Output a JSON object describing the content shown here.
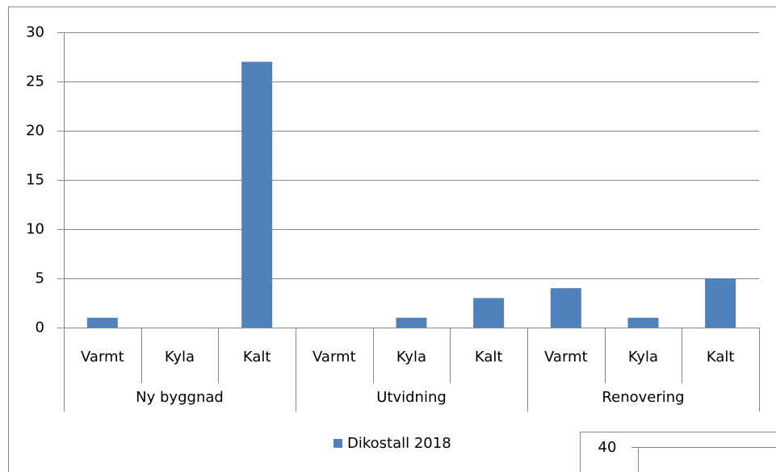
{
  "chart_data": [
    {
      "type": "bar",
      "categories": [
        "Varmt",
        "Kyla",
        "Kalt",
        "Varmt",
        "Kyla",
        "Kalt",
        "Varmt",
        "Kyla",
        "Kalt"
      ],
      "category_groups": [
        "Ny byggnad",
        "Utvidning",
        "Renovering"
      ],
      "series": [
        {
          "name": "Dikostall 2018",
          "color": "#4f81bd",
          "values": [
            1,
            0,
            27,
            0,
            1,
            3,
            4,
            1,
            5
          ]
        }
      ],
      "ylim": [
        0,
        30
      ],
      "yticks": [
        0,
        5,
        10,
        15,
        20,
        25,
        30
      ],
      "grid": true,
      "legend": "bottom"
    },
    {
      "type": "bar",
      "yticks": [
        40
      ]
    }
  ]
}
